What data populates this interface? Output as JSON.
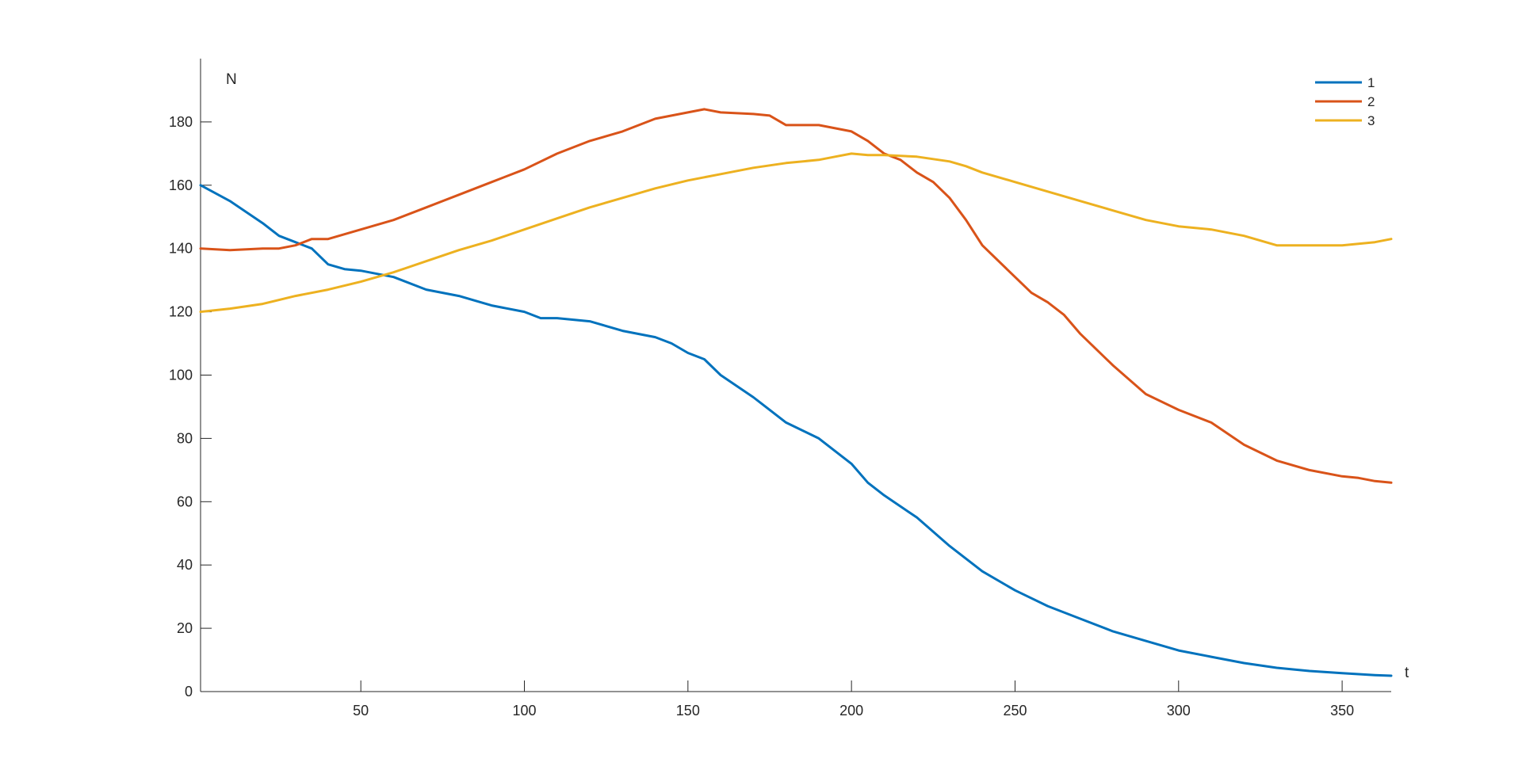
{
  "chart_data": {
    "type": "line",
    "xlabel": "t",
    "ylabel": "N",
    "xlim": [
      1,
      365
    ],
    "ylim": [
      0,
      200
    ],
    "xticks": [
      50,
      100,
      150,
      200,
      250,
      300,
      350
    ],
    "yticks": [
      0,
      20,
      40,
      60,
      80,
      100,
      120,
      140,
      160,
      180
    ],
    "grid": false,
    "legend_position": "top-right",
    "series": [
      {
        "name": "1",
        "color": "#0072BD",
        "x": [
          1,
          10,
          20,
          25,
          30,
          35,
          40,
          45,
          50,
          55,
          60,
          70,
          80,
          90,
          100,
          105,
          110,
          120,
          130,
          140,
          145,
          150,
          155,
          160,
          170,
          180,
          190,
          195,
          200,
          205,
          210,
          220,
          230,
          240,
          250,
          260,
          270,
          280,
          290,
          300,
          310,
          320,
          330,
          340,
          350,
          360,
          365
        ],
        "y": [
          160,
          155,
          148,
          144,
          142,
          140,
          135,
          133.5,
          133,
          132,
          131,
          127,
          125,
          122,
          120,
          118,
          118,
          117,
          114,
          112,
          110,
          107,
          105,
          100,
          93,
          85,
          80,
          76,
          72,
          66,
          62,
          55,
          46,
          38,
          32,
          27,
          23,
          19,
          16,
          13,
          11,
          9,
          7.5,
          6.5,
          5.8,
          5.2,
          5
        ]
      },
      {
        "name": "2",
        "color": "#D95319",
        "x": [
          1,
          10,
          20,
          25,
          30,
          35,
          40,
          50,
          60,
          70,
          80,
          90,
          100,
          110,
          120,
          130,
          140,
          150,
          155,
          160,
          170,
          175,
          180,
          190,
          200,
          205,
          210,
          215,
          220,
          225,
          230,
          235,
          240,
          250,
          255,
          260,
          265,
          270,
          280,
          290,
          300,
          310,
          320,
          330,
          340,
          350,
          355,
          360,
          365
        ],
        "y": [
          140,
          139.5,
          140,
          140,
          141,
          143,
          143,
          146,
          149,
          153,
          157,
          161,
          165,
          170,
          174,
          177,
          181,
          183,
          184,
          183,
          182.5,
          182,
          179,
          179,
          177,
          174,
          170,
          168,
          164,
          161,
          156,
          149,
          141,
          131,
          126,
          123,
          119,
          113,
          103,
          94,
          89,
          85,
          78,
          73,
          70,
          68,
          67.5,
          66.5,
          66
        ]
      },
      {
        "name": "3",
        "color": "#EDB120",
        "x": [
          1,
          10,
          20,
          30,
          40,
          50,
          60,
          70,
          80,
          90,
          100,
          110,
          120,
          130,
          140,
          150,
          160,
          170,
          180,
          190,
          195,
          200,
          205,
          210,
          220,
          230,
          235,
          240,
          250,
          260,
          270,
          280,
          290,
          300,
          310,
          320,
          330,
          340,
          350,
          355,
          360,
          365
        ],
        "y": [
          120,
          121,
          122.5,
          125,
          127,
          129.5,
          132.5,
          136,
          139.5,
          142.5,
          146,
          149.5,
          153,
          156,
          159,
          161.5,
          163.5,
          165.5,
          167,
          168,
          169,
          170,
          169.5,
          169.5,
          169,
          167.5,
          166,
          164,
          161,
          158,
          155,
          152,
          149,
          147,
          146,
          144,
          141,
          141,
          141,
          141.5,
          142,
          143
        ]
      }
    ]
  }
}
